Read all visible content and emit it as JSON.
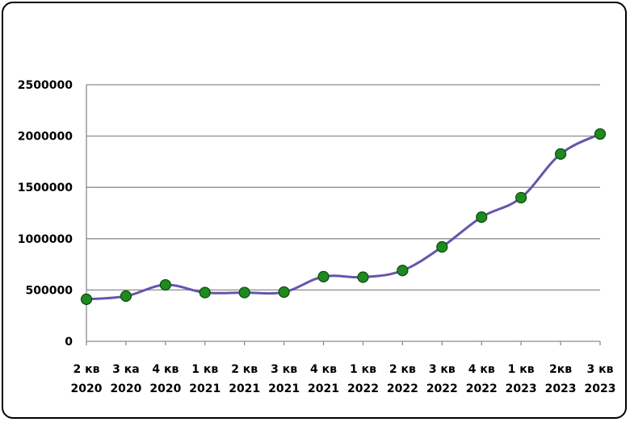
{
  "chart_data": {
    "type": "line",
    "title": "",
    "xlabel": "",
    "ylabel": "",
    "categories": [
      [
        "2 кв",
        "2020"
      ],
      [
        "3 ка",
        "2020"
      ],
      [
        "4 кв",
        "2020"
      ],
      [
        "1 кв",
        "2021"
      ],
      [
        "2 кв",
        "2021"
      ],
      [
        "3 кв",
        "2021"
      ],
      [
        "4 кв",
        "2021"
      ],
      [
        "1 кв",
        "2022"
      ],
      [
        "2 кв",
        "2022"
      ],
      [
        "3 кв",
        "2022"
      ],
      [
        "4 кв",
        "2022"
      ],
      [
        "1 кв",
        "2023"
      ],
      [
        "2кв",
        "2023"
      ],
      [
        "3 кв",
        "2023"
      ]
    ],
    "values": [
      410000,
      440000,
      550000,
      475000,
      475000,
      480000,
      630000,
      625000,
      690000,
      920000,
      1210000,
      1400000,
      1825000,
      2020000
    ],
    "ylim": [
      0,
      2500000
    ],
    "yticks": [
      0,
      500000,
      1000000,
      1500000,
      2000000,
      2500000
    ],
    "grid": true,
    "legend": "none",
    "colors": {
      "line": "#6655aa",
      "marker_fill": "#1f8a1f",
      "marker_stroke": "#0c4a0c",
      "grid": "#8c8c8c"
    }
  }
}
